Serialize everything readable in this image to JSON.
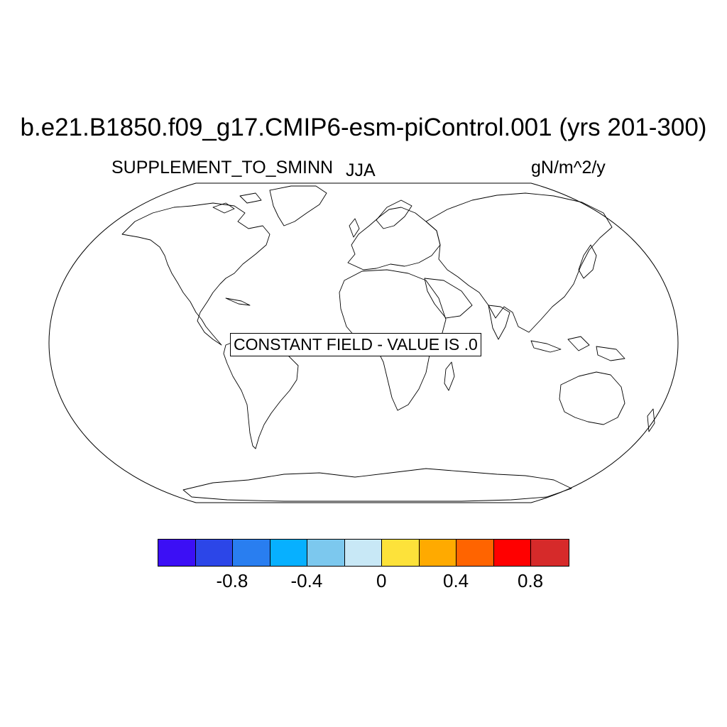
{
  "title": "b.e21.B1850.f09_g17.CMIP6-esm-piControl.001 (yrs 201-300)",
  "variable": "SUPPLEMENT_TO_SMINN",
  "season": "JJA",
  "units": "gN/m^2/y",
  "message": "CONSTANT FIELD - VALUE IS .0",
  "colorbar": {
    "colors": [
      "#3c0ff5",
      "#2c46e8",
      "#297ef0",
      "#07b0ff",
      "#7cc8ee",
      "#c8e8f6",
      "#fde23a",
      "#ffaa00",
      "#ff6400",
      "#ff0000",
      "#d62a2a"
    ],
    "tick_labels": [
      "-0.8",
      "-0.4",
      "0",
      "0.4",
      "0.8"
    ]
  }
}
